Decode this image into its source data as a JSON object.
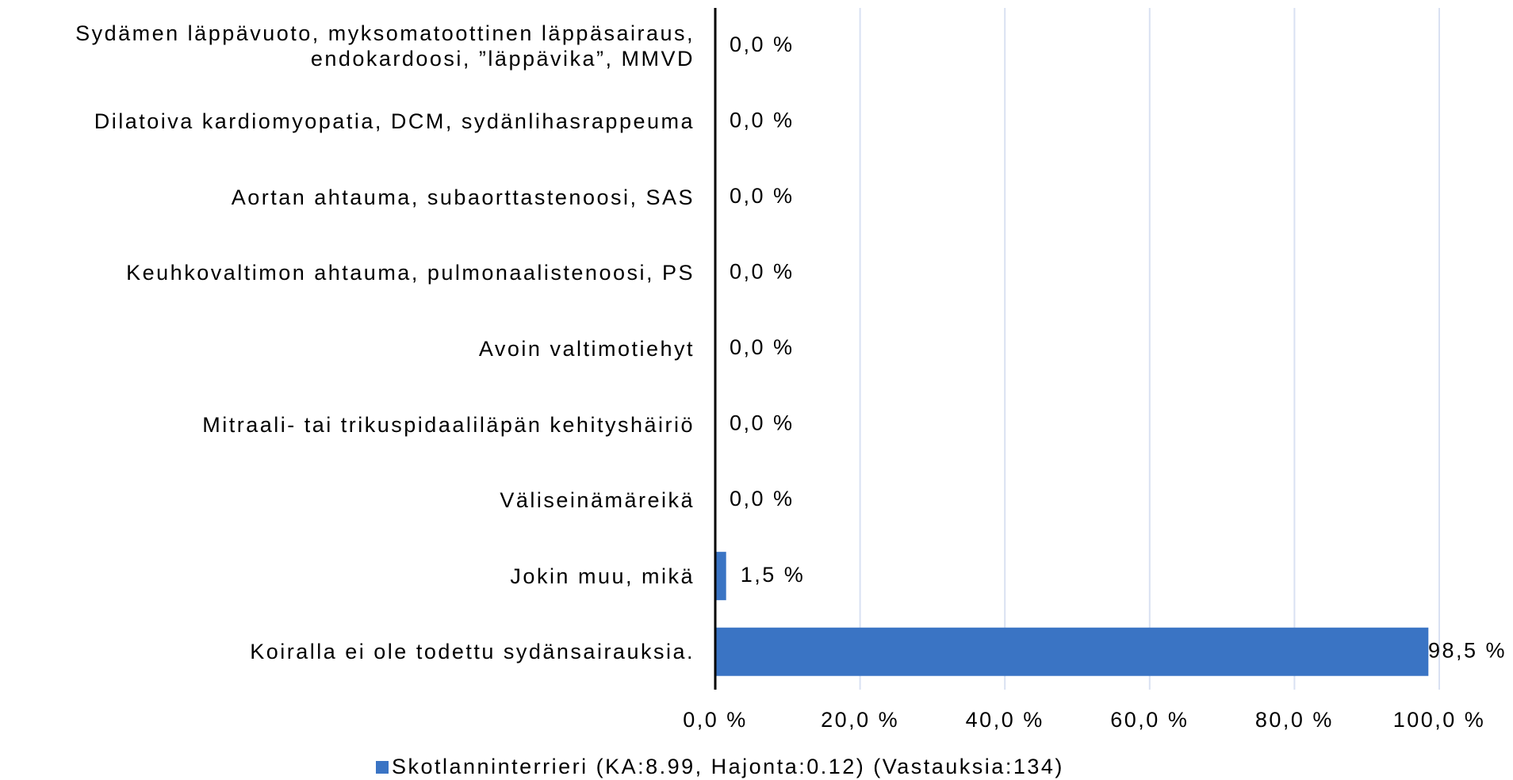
{
  "chart_data": {
    "type": "bar",
    "orientation": "horizontal",
    "categories": [
      "Sydämen läppävuoto, myksomatoottinen läppäsairaus, endokardoosi, ”läppävika”, MMVD",
      "Dilatoiva kardiomyopatia, DCM, sydänlihasrappeuma",
      "Aortan ahtauma, subaorttastenoosi, SAS",
      "Keuhkovaltimon ahtauma, pulmonaalistenoosi, PS",
      "Avoin valtimotiehyt",
      "Mitraali- tai trikuspidaaliläpän kehityshäiriö",
      "Väliseinämäreikä",
      "Jokin muu, mikä",
      "Koiralla ei ole todettu sydänsairauksia."
    ],
    "series": [
      {
        "name": "Skotlanninterrieri (KA:8.99, Hajonta:0.12) (Vastauksia:134)",
        "color": "#3a74c4",
        "values": [
          0,
          0,
          0,
          0,
          0,
          0,
          0,
          1.5,
          98.5
        ],
        "value_labels": [
          "0,0 %",
          "0,0 %",
          "0,0 %",
          "0,0 %",
          "0,0 %",
          "0,0 %",
          "0,0 %",
          "1,5 %",
          "98,5 %"
        ]
      }
    ],
    "xlim": [
      0,
      100
    ],
    "xticks": [
      {
        "value": 0,
        "label": "0,0 %"
      },
      {
        "value": 20,
        "label": "20,0 %"
      },
      {
        "value": 40,
        "label": "40,0 %"
      },
      {
        "value": 60,
        "label": "60,0 %"
      },
      {
        "value": 80,
        "label": "80,0 %"
      },
      {
        "value": 100,
        "label": "100,0 %"
      }
    ],
    "grid": true,
    "legend": "bottom"
  }
}
